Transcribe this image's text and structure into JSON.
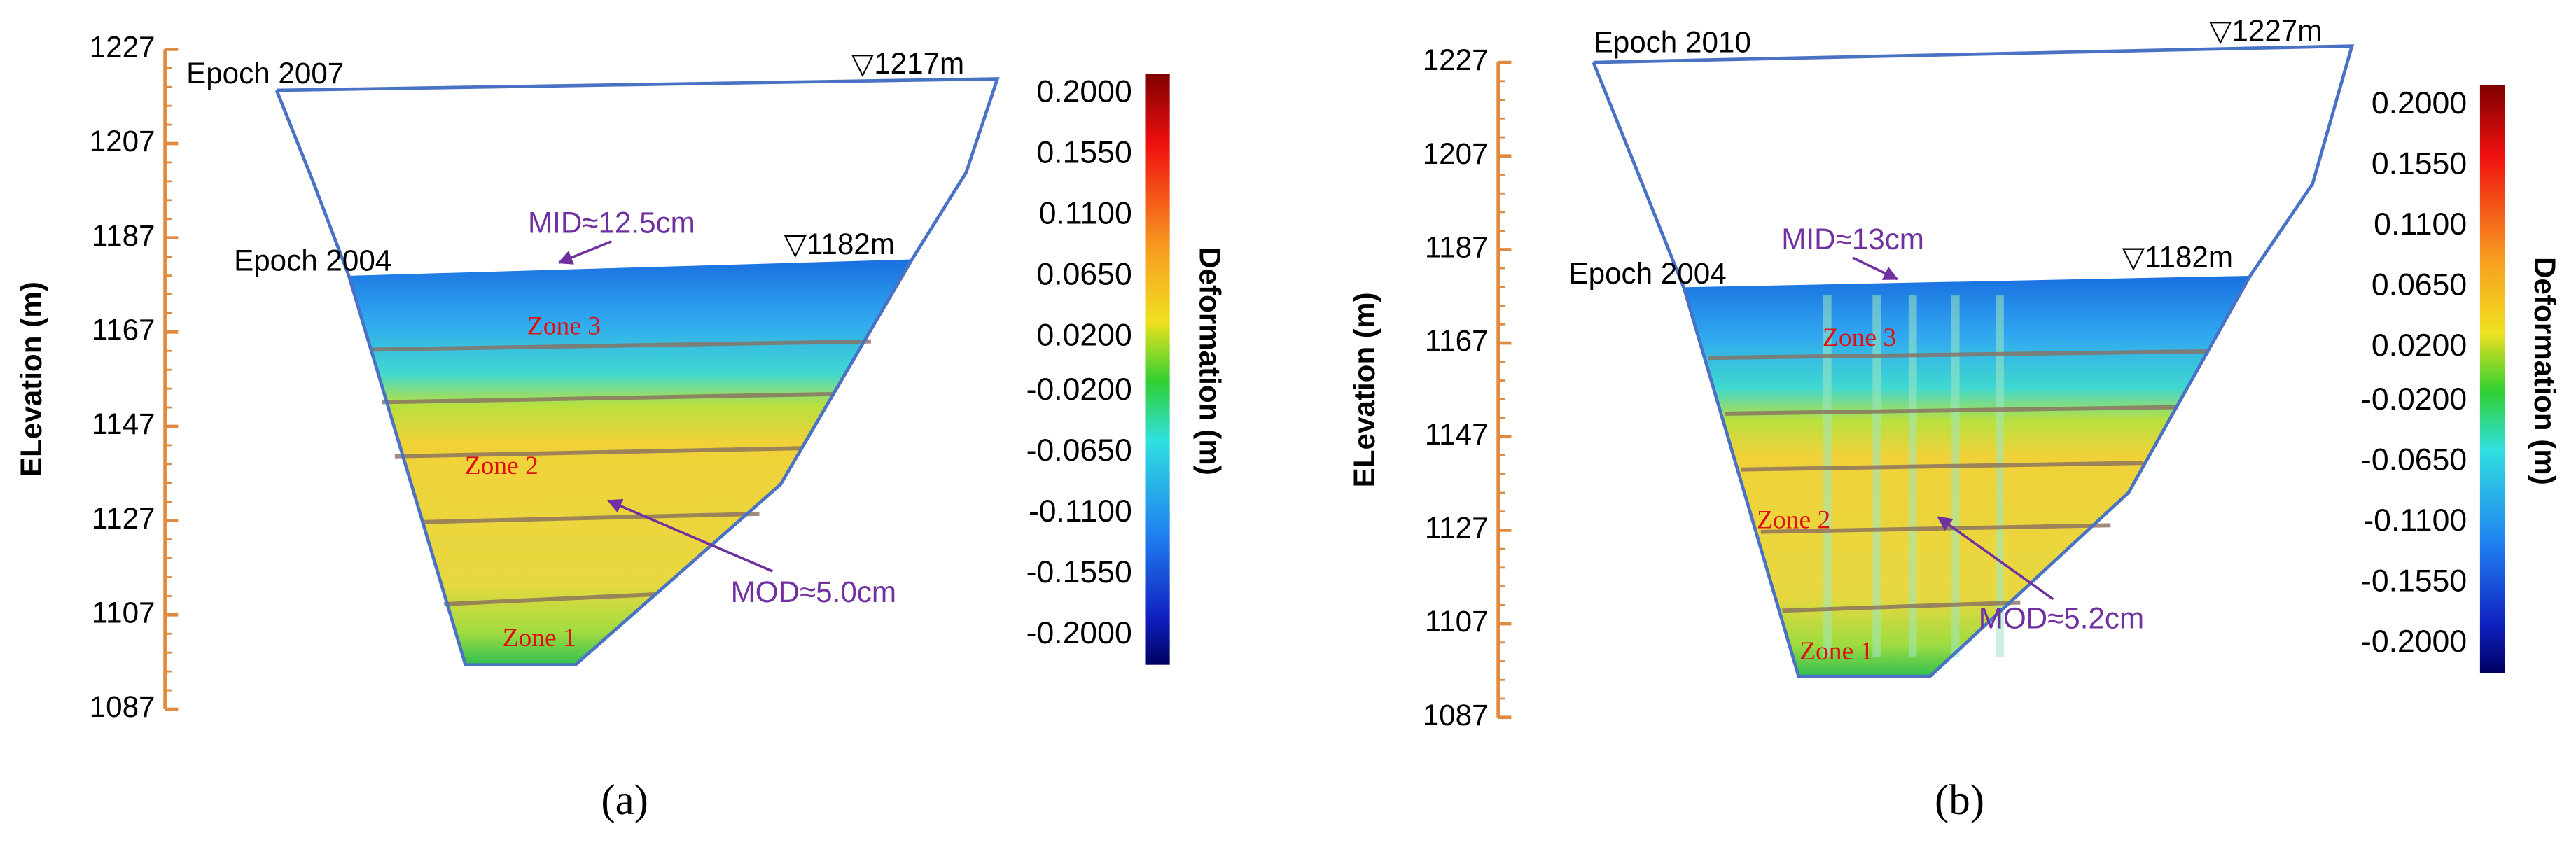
{
  "panels": [
    {
      "label": "(a)",
      "axis_label": "ELevation (m)",
      "ylim": [
        1087,
        1227
      ],
      "yticks": [
        1227,
        1207,
        1187,
        1167,
        1147,
        1127,
        1107,
        1087
      ],
      "epoch_top": "Epoch 2007",
      "epoch_bottom": "Epoch 2004",
      "level_top": "▽1217m",
      "level_bottom": "▽1182m",
      "mid": "MID≈12.5cm",
      "mod": "MOD≈5.0cm",
      "zones": [
        "Zone 3",
        "Zone 2",
        "Zone 1"
      ],
      "colorbar": {
        "label": "Deformation (m)",
        "lim": [
          -0.2,
          0.2
        ],
        "ticks": [
          {
            "value": 0.2,
            "label": "0.2000"
          },
          {
            "value": 0.155,
            "label": "0.1550"
          },
          {
            "value": 0.11,
            "label": "0.1100"
          },
          {
            "value": 0.065,
            "label": "0.0650"
          },
          {
            "value": 0.02,
            "label": "0.0200"
          },
          {
            "value": -0.02,
            "label": "-0.0200"
          },
          {
            "value": -0.065,
            "label": "-0.0650"
          },
          {
            "value": -0.11,
            "label": "-0.1100"
          },
          {
            "value": -0.155,
            "label": "-0.1550"
          },
          {
            "value": -0.2,
            "label": "-0.2000"
          }
        ]
      }
    },
    {
      "label": "(b)",
      "axis_label": "ELevation (m)",
      "ylim": [
        1087,
        1227
      ],
      "yticks": [
        1227,
        1207,
        1187,
        1167,
        1147,
        1127,
        1107,
        1087
      ],
      "epoch_top": "Epoch 2010",
      "epoch_bottom": "Epoch 2004",
      "level_top": "▽1227m",
      "level_bottom": "▽1182m",
      "mid": "MID≈13cm",
      "mod": "MOD≈5.2cm",
      "zones": [
        "Zone 3",
        "Zone 2",
        "Zone 1"
      ],
      "colorbar": {
        "label": "Deformation (m)",
        "lim": [
          -0.2,
          0.2
        ],
        "ticks": [
          {
            "value": 0.2,
            "label": "0.2000"
          },
          {
            "value": 0.155,
            "label": "0.1550"
          },
          {
            "value": 0.11,
            "label": "0.1100"
          },
          {
            "value": 0.065,
            "label": "0.0650"
          },
          {
            "value": 0.02,
            "label": "0.0200"
          },
          {
            "value": -0.02,
            "label": "-0.0200"
          },
          {
            "value": -0.065,
            "label": "-0.0650"
          },
          {
            "value": -0.11,
            "label": "-0.1100"
          },
          {
            "value": -0.155,
            "label": "-0.1550"
          },
          {
            "value": -0.2,
            "label": "-0.2000"
          }
        ]
      }
    }
  ]
}
